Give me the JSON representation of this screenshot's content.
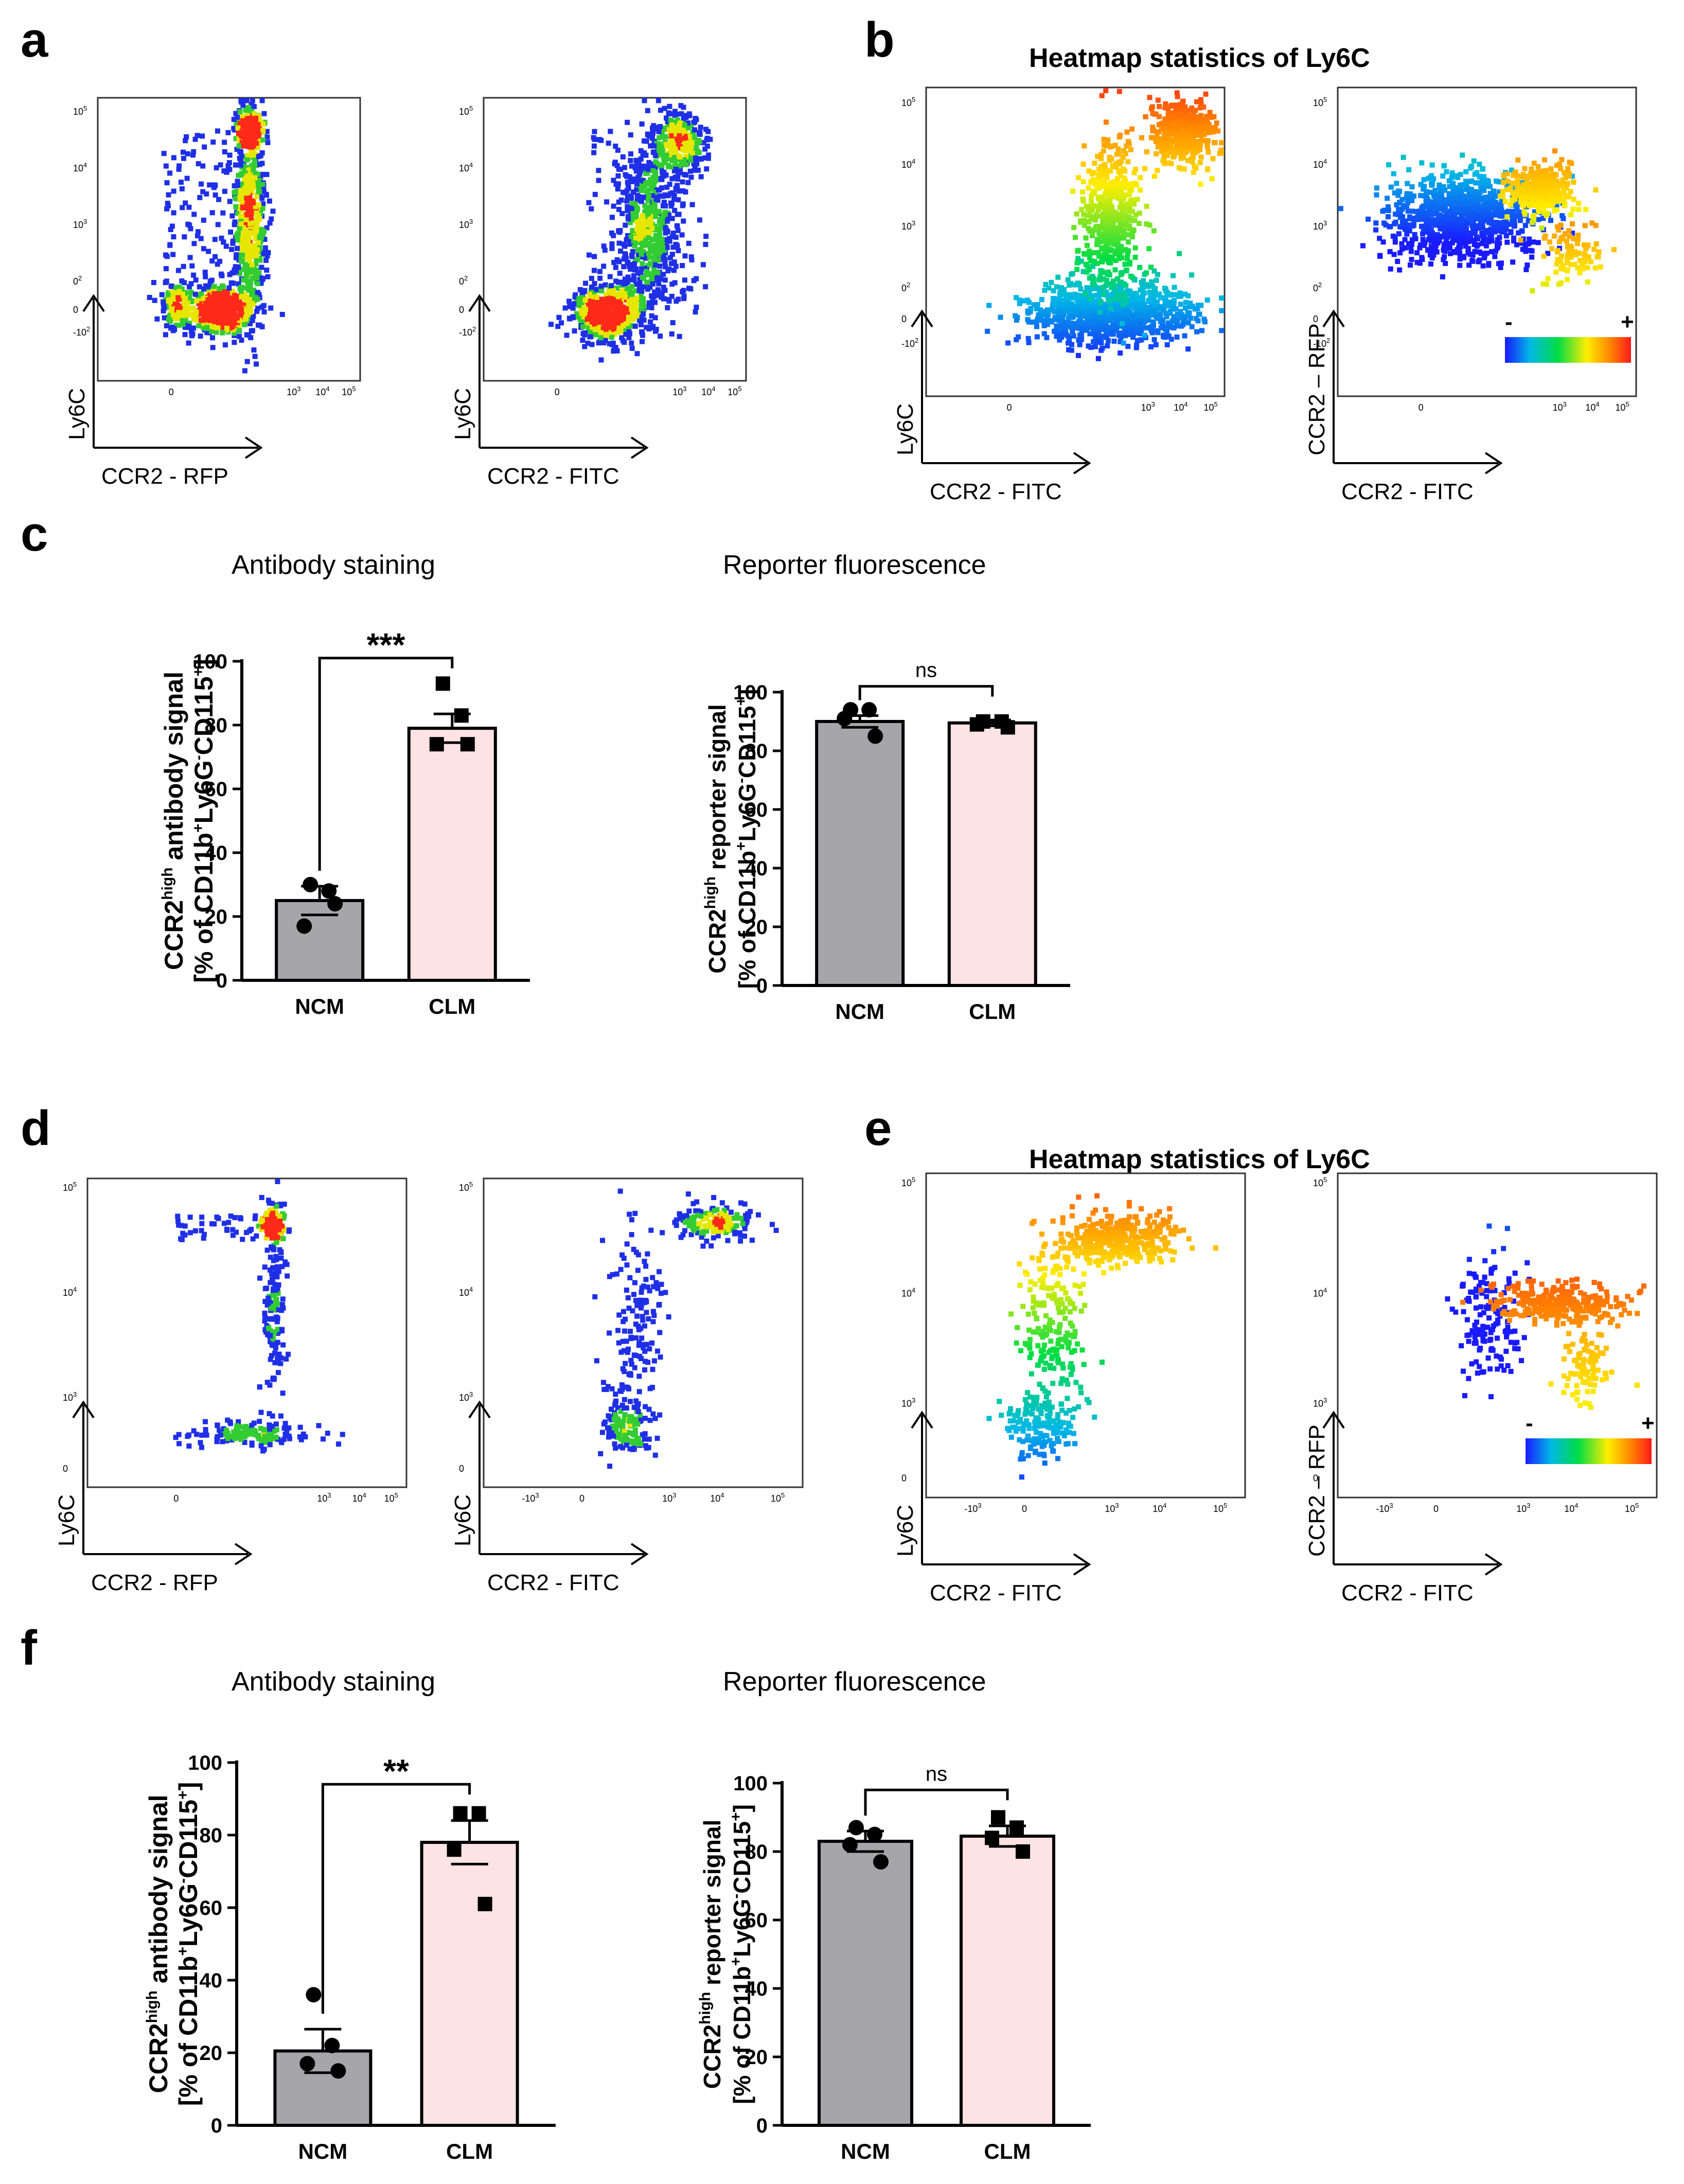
{
  "figure": {
    "panels": {
      "a": "a",
      "b": "b",
      "c": "c",
      "d": "d",
      "e": "e",
      "f": "f"
    },
    "heatmap_title": "Heatmap statistics of Ly6C",
    "axis_labels": {
      "ly6c": "Ly6C",
      "ccr2_rfp": "CCR2 - RFP",
      "ccr2_fitc": "CCR2 - FITC",
      "ccr2_rfp_dash": "CCR2 – RFP"
    },
    "colorbar": {
      "minus": "-",
      "plus": "+",
      "colors": [
        "#1a1aff",
        "#00b8e6",
        "#00dd44",
        "#ffee00",
        "#ff8800",
        "#ff1a1a"
      ]
    },
    "ticks": {
      "t0": "0",
      "t3": "10",
      "t4": "10",
      "t5": "10",
      "e3": "3",
      "e4": "4",
      "e5": "5",
      "e2": "2",
      "n2": "-10",
      "n3": "-10"
    },
    "density_colors": {
      "low": "#1f2fe6",
      "mid": "#33cc33",
      "high": "#e6e600",
      "peak": "#ff2a1a"
    }
  },
  "chart_data": [
    {
      "panel": "c-left",
      "type": "bar",
      "title": "Antibody staining",
      "categories": [
        "NCM",
        "CLM"
      ],
      "values": [
        25,
        79
      ],
      "sem": [
        4.5,
        4.5
      ],
      "points": [
        [
          30,
          28,
          17,
          24
        ],
        [
          93,
          83,
          74,
          74
        ]
      ],
      "ylim": [
        0,
        100
      ],
      "yticks": [
        0,
        20,
        40,
        60,
        80,
        100
      ],
      "ylabel_main": "CCR2",
      "ylabel_sup": "high",
      "ylabel_rest": " antibody signal",
      "ylabel2_a": "[% of CD11b",
      "ylabel2_b": "+",
      "ylabel2_c": "Ly6G",
      "ylabel2_d": "-",
      "ylabel2_e": "CD115",
      "ylabel2_f": "+",
      "ylabel2_g": "]",
      "significance": "***",
      "bar_colors": [
        "#a6a6aa",
        "#fde3e3"
      ]
    },
    {
      "panel": "c-right",
      "type": "bar",
      "title": "Reporter fluorescence",
      "categories": [
        "NCM",
        "CLM"
      ],
      "values": [
        90,
        89.5
      ],
      "sem": [
        2,
        1
      ],
      "points": [
        [
          94,
          94,
          91,
          85
        ],
        [
          90,
          90,
          89,
          88
        ]
      ],
      "ylim": [
        0,
        100
      ],
      "yticks": [
        0,
        20,
        40,
        60,
        80,
        100
      ],
      "ylabel_main": "CCR2",
      "ylabel_sup": "high",
      "ylabel_rest": " reporter signal",
      "ylabel2_a": "[% of CD11b",
      "ylabel2_b": "+",
      "ylabel2_c": "Ly6G",
      "ylabel2_d": "-",
      "ylabel2_e": "CD115",
      "ylabel2_f": "+",
      "ylabel2_g": "]",
      "significance": "ns",
      "bar_colors": [
        "#a6a6aa",
        "#fde3e3"
      ]
    },
    {
      "panel": "f-left",
      "type": "bar",
      "title": "Antibody staining",
      "categories": [
        "NCM",
        "CLM"
      ],
      "values": [
        20.5,
        78
      ],
      "sem": [
        6,
        6
      ],
      "points": [
        [
          36,
          22,
          17,
          15
        ],
        [
          86,
          86,
          76,
          61
        ]
      ],
      "ylim": [
        0,
        100
      ],
      "yticks": [
        0,
        20,
        40,
        60,
        80,
        100
      ],
      "ylabel_main": "CCR2",
      "ylabel_sup": "high",
      "ylabel_rest": " antibody signal",
      "ylabel2_a": "[% of CD11b",
      "ylabel2_b": "+",
      "ylabel2_c": "Ly6G",
      "ylabel2_d": "-",
      "ylabel2_e": "CD115",
      "ylabel2_f": "+",
      "ylabel2_g": "]",
      "significance": "**",
      "bar_colors": [
        "#a6a6aa",
        "#fde3e3"
      ]
    },
    {
      "panel": "f-right",
      "type": "bar",
      "title": "Reporter fluorescence",
      "categories": [
        "NCM",
        "CLM"
      ],
      "values": [
        83,
        84.5
      ],
      "sem": [
        3,
        3
      ],
      "points": [
        [
          87,
          85,
          82,
          77
        ],
        [
          90,
          87,
          84,
          80
        ]
      ],
      "ylim": [
        0,
        100
      ],
      "yticks": [
        0,
        20,
        40,
        60,
        80,
        100
      ],
      "ylabel_main": "CCR2",
      "ylabel_sup": "high",
      "ylabel_rest": " reporter signal",
      "ylabel2_a": "[% of CD11b",
      "ylabel2_b": "+",
      "ylabel2_c": "Ly6G",
      "ylabel2_d": "-",
      "ylabel2_e": "CD115",
      "ylabel2_f": "+",
      "ylabel2_g": "]",
      "significance": "ns",
      "bar_colors": [
        "#a6a6aa",
        "#fde3e3"
      ]
    }
  ]
}
